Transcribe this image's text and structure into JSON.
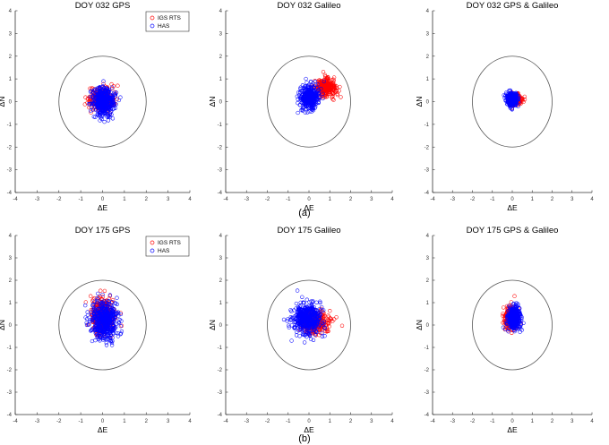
{
  "chart_data": [
    {
      "type": "scatter",
      "panel": "a",
      "title": "DOY 032 GPS",
      "xlabel": "ΔE",
      "ylabel": "ΔN",
      "xlim": [
        -4,
        4
      ],
      "ylim": [
        -4,
        4
      ],
      "legend": {
        "placement": "top-right",
        "entries": [
          "IGS RTS",
          "HAS"
        ]
      },
      "reference_circle_radius": 2,
      "series": [
        {
          "name": "IGS RTS",
          "color": "#ff0000",
          "center": [
            -0.05,
            0.1
          ],
          "spread": [
            0.5,
            0.45
          ],
          "count": 320
        },
        {
          "name": "HAS",
          "color": "#0000ff",
          "center": [
            0.05,
            0.0
          ],
          "spread": [
            0.45,
            0.55
          ],
          "count": 450
        }
      ]
    },
    {
      "type": "scatter",
      "panel": "a",
      "title": "DOY 032 Galileo",
      "xlabel": "ΔE",
      "ylabel": "ΔN",
      "xlim": [
        -4,
        4
      ],
      "ylim": [
        -4,
        4
      ],
      "reference_circle_radius": 2,
      "series": [
        {
          "name": "IGS RTS",
          "color": "#ff0000",
          "center": [
            0.8,
            0.6
          ],
          "spread": [
            0.45,
            0.35
          ],
          "count": 280
        },
        {
          "name": "HAS",
          "color": "#0000ff",
          "center": [
            0.0,
            0.2
          ],
          "spread": [
            0.4,
            0.45
          ],
          "count": 420
        }
      ]
    },
    {
      "type": "scatter",
      "panel": "a",
      "title": "DOY 032 GPS & Galileo",
      "xlabel": "ΔE",
      "ylabel": "ΔN",
      "xlim": [
        -4,
        4
      ],
      "ylim": [
        -4,
        4
      ],
      "reference_circle_radius": 2,
      "series": [
        {
          "name": "IGS RTS",
          "color": "#ff0000",
          "center": [
            0.2,
            0.1
          ],
          "spread": [
            0.25,
            0.2
          ],
          "count": 200
        },
        {
          "name": "HAS",
          "color": "#0000ff",
          "center": [
            0.0,
            0.1
          ],
          "spread": [
            0.25,
            0.25
          ],
          "count": 360
        }
      ]
    },
    {
      "type": "scatter",
      "panel": "b",
      "title": "DOY 175 GPS",
      "xlabel": "ΔE",
      "ylabel": "ΔN",
      "xlim": [
        -4,
        4
      ],
      "ylim": [
        -4,
        4
      ],
      "legend": {
        "placement": "top-right",
        "entries": [
          "IGS RTS",
          "HAS"
        ]
      },
      "reference_circle_radius": 2,
      "series": [
        {
          "name": "IGS RTS",
          "color": "#ff0000",
          "center": [
            0.0,
            0.4
          ],
          "spread": [
            0.45,
            0.7
          ],
          "count": 420
        },
        {
          "name": "HAS",
          "color": "#0000ff",
          "center": [
            0.1,
            0.2
          ],
          "spread": [
            0.55,
            0.75
          ],
          "count": 520
        }
      ]
    },
    {
      "type": "scatter",
      "panel": "b",
      "title": "DOY 175 Galileo",
      "xlabel": "ΔE",
      "ylabel": "ΔN",
      "xlim": [
        -4,
        4
      ],
      "ylim": [
        -4,
        4
      ],
      "reference_circle_radius": 2,
      "series": [
        {
          "name": "IGS RTS",
          "color": "#ff0000",
          "center": [
            0.3,
            0.1
          ],
          "spread": [
            0.6,
            0.45
          ],
          "count": 320
        },
        {
          "name": "HAS",
          "color": "#0000ff",
          "center": [
            -0.1,
            0.3
          ],
          "spread": [
            0.6,
            0.6
          ],
          "count": 500
        }
      ]
    },
    {
      "type": "scatter",
      "panel": "b",
      "title": "DOY 175 GPS & Galileo",
      "xlabel": "ΔE",
      "ylabel": "ΔN",
      "xlim": [
        -4,
        4
      ],
      "ylim": [
        -4,
        4
      ],
      "reference_circle_radius": 2,
      "series": [
        {
          "name": "IGS RTS",
          "color": "#ff0000",
          "center": [
            -0.1,
            0.3
          ],
          "spread": [
            0.3,
            0.45
          ],
          "count": 260
        },
        {
          "name": "HAS",
          "color": "#0000ff",
          "center": [
            0.1,
            0.3
          ],
          "spread": [
            0.3,
            0.45
          ],
          "count": 400
        }
      ]
    }
  ],
  "captions": [
    "(a)",
    "(b)"
  ]
}
